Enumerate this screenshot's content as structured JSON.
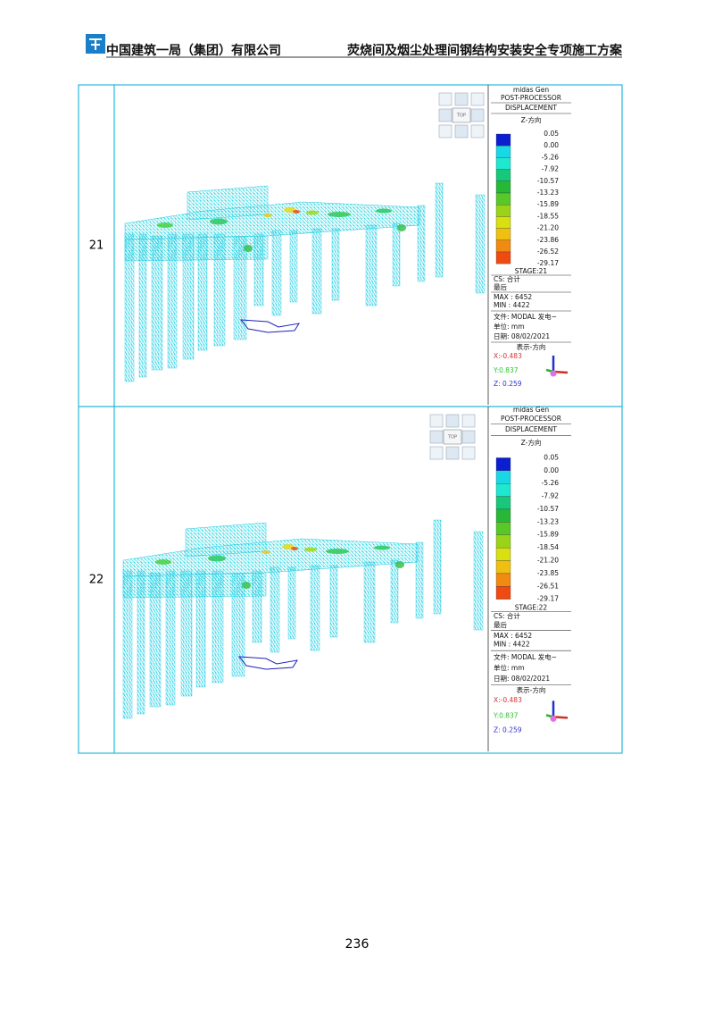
{
  "header": {
    "company": "中国建筑一局（集团）有限公司",
    "title": "荧烧间及烟尘处理间钢结构安装安全专项施工方案"
  },
  "table": {
    "rows": [
      {
        "label": "21",
        "figure": {
          "view_cube": "TOP",
          "software": "midas Gen",
          "processor": "POST-PROCESSOR",
          "result": "DISPLACEMENT",
          "direction": "Z-方向",
          "legend_values": [
            "0.05",
            "0.00",
            "-5.26",
            "-7.92",
            "-10.57",
            "-13.23",
            "-15.89",
            "-18.55",
            "-21.20",
            "-23.86",
            "-26.52",
            "-29.17"
          ],
          "stage": "STAGE:21",
          "cs": "CS: 合计",
          "step": "最后",
          "max": "MAX : 6452",
          "min": "MIN : 4422",
          "file": "文件: MODAL 发电~",
          "unit": "单位: mm",
          "date": "日期: 08/02/2021",
          "view_direction": "表示-方向",
          "x": "X:-0.483",
          "y": "Y:0.837",
          "z": "Z: 0.259"
        }
      },
      {
        "label": "22",
        "figure": {
          "view_cube": "TOP",
          "software": "midas Gen",
          "processor": "POST-PROCESSOR",
          "result": "DISPLACEMENT",
          "direction": "Z-方向",
          "legend_values": [
            "0.05",
            "0.00",
            "-5.26",
            "-7.92",
            "-10.57",
            "-13.23",
            "-15.89",
            "-18.54",
            "-21.20",
            "-23.85",
            "-26.51",
            "-29.17"
          ],
          "stage": "STAGE:22",
          "cs": "CS: 合计",
          "step": "最后",
          "max": "MAX : 6452",
          "min": "MIN : 4422",
          "file": "文件: MODAL 发电~",
          "unit": "单位: mm",
          "date": "日期: 08/02/2021",
          "view_direction": "表示-方向",
          "x": "X:-0.483",
          "y": "Y:0.837",
          "z": "Z: 0.259"
        }
      }
    ]
  },
  "page_number": "236"
}
